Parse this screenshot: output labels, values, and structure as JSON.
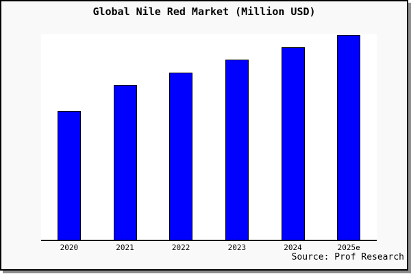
{
  "title": "Global Nile Red Market (Million USD)",
  "source_credit": "Source: Prof Research",
  "colors": {
    "bar_fill": "#0000ff",
    "bar_border": "#000000",
    "page_background": "#f9f9f9",
    "plot_background": "#ffffff",
    "axis": "#000000",
    "frame_border": "#000000",
    "frame_shadow": "#8e8e8e",
    "text": "#000000"
  },
  "chart_data": {
    "type": "bar",
    "title": "Global Nile Red Market (Million USD)",
    "categories": [
      "2020",
      "2021",
      "2022",
      "2023",
      "2024",
      "2025e"
    ],
    "values": [
      62.7,
      75.2,
      81.3,
      87.7,
      93.7,
      99.8
    ],
    "xlabel": "",
    "ylabel": "",
    "ylim": [
      0,
      100
    ],
    "grid": false,
    "legend": null,
    "y_axis_shown": false,
    "note": "Chart displays no y-axis or value labels; values are relative units estimated from bar heights (tallest bar ~= 100)."
  }
}
